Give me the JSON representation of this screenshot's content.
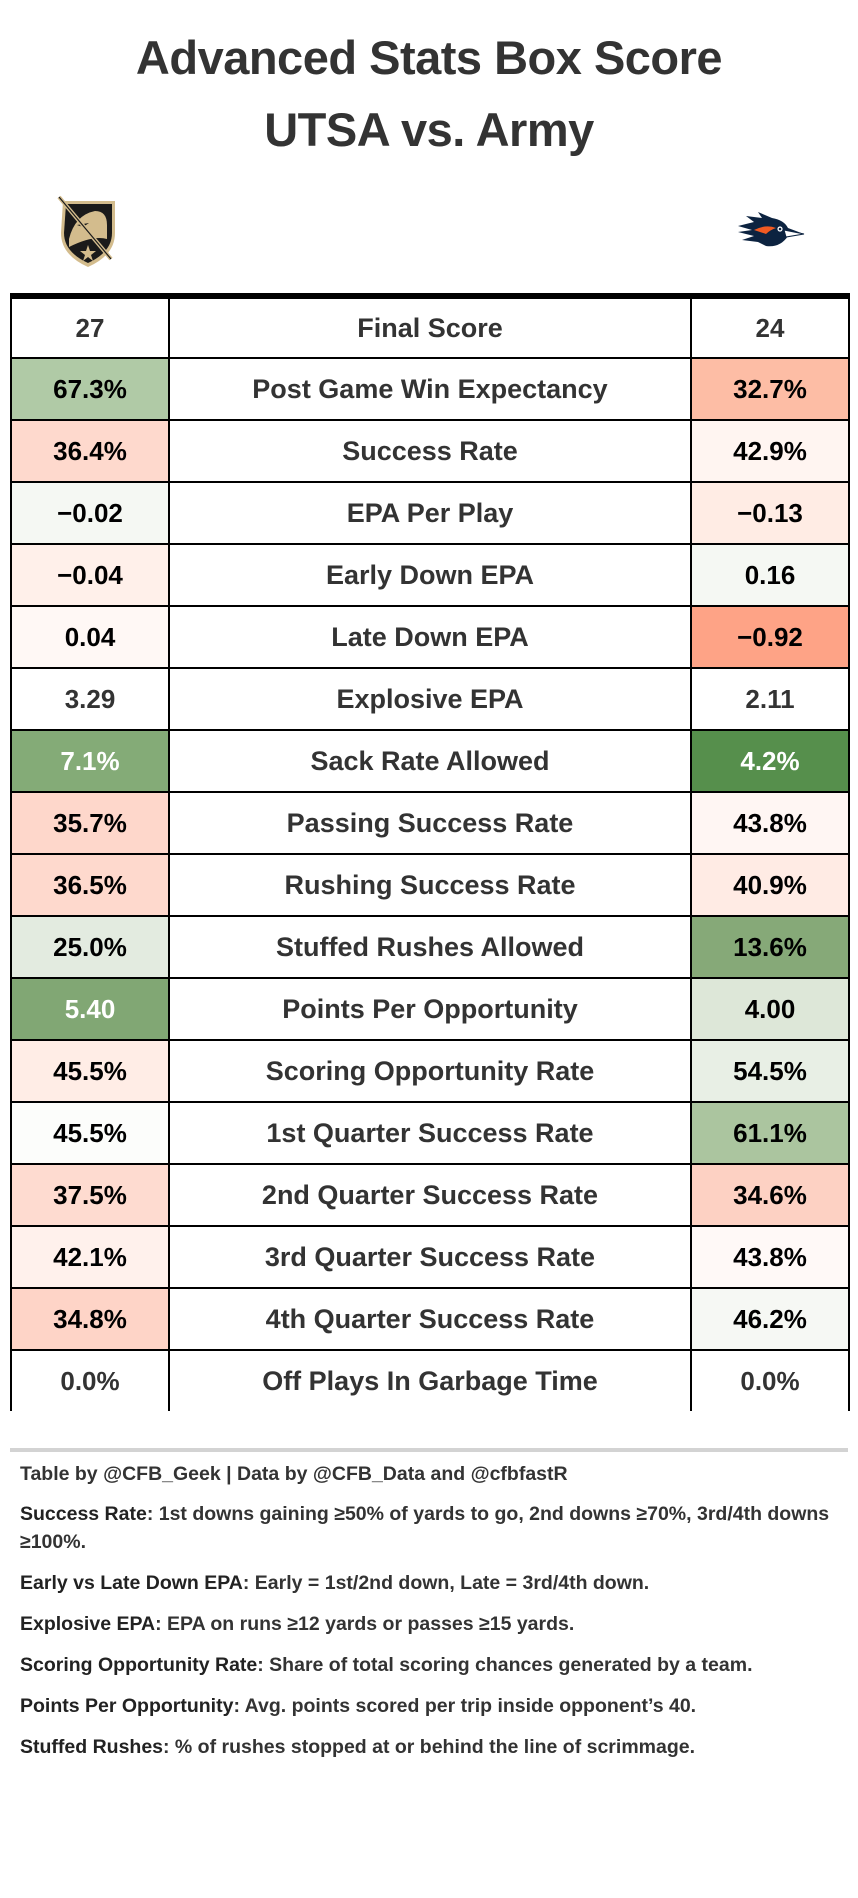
{
  "header": {
    "title_line1": "Advanced Stats Box Score",
    "title_line2": "UTSA vs. Army",
    "left_team_logo": "army-black-knights-logo",
    "right_team_logo": "utsa-roadrunners-logo"
  },
  "table": {
    "rows": [
      {
        "left": "27",
        "label": "Final Score",
        "right": "24",
        "left_bg": "#ffffff",
        "right_bg": "#ffffff",
        "left_text": "plain",
        "right_text": "plain"
      },
      {
        "left": "67.3%",
        "label": "Post Game Win Expectancy",
        "right": "32.7%",
        "left_bg": "#b0caa6",
        "right_bg": "#fdbda5",
        "left_text": "dark",
        "right_text": "dark"
      },
      {
        "left": "36.4%",
        "label": "Success Rate",
        "right": "42.9%",
        "left_bg": "#fed9cd",
        "right_bg": "#fff5f1",
        "left_text": "dark",
        "right_text": "dark"
      },
      {
        "left": "−0.02",
        "label": "EPA Per Play",
        "right": "−0.13",
        "left_bg": "#f5f8f3",
        "right_bg": "#ffece4",
        "left_text": "dark",
        "right_text": "dark"
      },
      {
        "left": "−0.04",
        "label": "Early Down EPA",
        "right": "0.16",
        "left_bg": "#fff0ea",
        "right_bg": "#f5f8f3",
        "left_text": "dark",
        "right_text": "dark"
      },
      {
        "left": "0.04",
        "label": "Late Down EPA",
        "right": "−0.92",
        "left_bg": "#fff8f5",
        "right_bg": "#fea386",
        "left_text": "dark",
        "right_text": "dark"
      },
      {
        "left": "3.29",
        "label": "Explosive EPA",
        "right": "2.11",
        "left_bg": "#ffffff",
        "right_bg": "#ffffff",
        "left_text": "plain",
        "right_text": "plain"
      },
      {
        "left": "7.1%",
        "label": "Sack Rate Allowed",
        "right": "4.2%",
        "left_bg": "#84ab77",
        "right_bg": "#568f4c",
        "left_text": "light",
        "right_text": "light"
      },
      {
        "left": "35.7%",
        "label": "Passing Success Rate",
        "right": "43.8%",
        "left_bg": "#fed7cb",
        "right_bg": "#fff6f3",
        "left_text": "dark",
        "right_text": "dark"
      },
      {
        "left": "36.5%",
        "label": "Rushing Success Rate",
        "right": "40.9%",
        "left_bg": "#fed9cd",
        "right_bg": "#ffebe4",
        "left_text": "dark",
        "right_text": "dark"
      },
      {
        "left": "25.0%",
        "label": "Stuffed Rushes Allowed",
        "right": "13.6%",
        "left_bg": "#e3ebe0",
        "right_bg": "#86a978",
        "left_text": "dark",
        "right_text": "dark"
      },
      {
        "left": "5.40",
        "label": "Points Per Opportunity",
        "right": "4.00",
        "left_bg": "#81a774",
        "right_bg": "#dde7d8",
        "left_text": "light",
        "right_text": "dark"
      },
      {
        "left": "45.5%",
        "label": "Scoring Opportunity Rate",
        "right": "54.5%",
        "left_bg": "#ffede6",
        "right_bg": "#e8efe5",
        "left_text": "dark",
        "right_text": "dark"
      },
      {
        "left": "45.5%",
        "label": "1st Quarter Success Rate",
        "right": "61.1%",
        "left_bg": "#fcfdfb",
        "right_bg": "#abc59f",
        "left_text": "dark",
        "right_text": "dark"
      },
      {
        "left": "37.5%",
        "label": "2nd Quarter Success Rate",
        "right": "34.6%",
        "left_bg": "#fedbd0",
        "right_bg": "#fdd1c3",
        "left_text": "dark",
        "right_text": "dark"
      },
      {
        "left": "42.1%",
        "label": "3rd Quarter Success Rate",
        "right": "43.8%",
        "left_bg": "#fff1ec",
        "right_bg": "#fff9f7",
        "left_text": "dark",
        "right_text": "dark"
      },
      {
        "left": "34.8%",
        "label": "4th Quarter Success Rate",
        "right": "46.2%",
        "left_bg": "#fed4c7",
        "right_bg": "#f6f8f4",
        "left_text": "dark",
        "right_text": "dark"
      },
      {
        "left": "0.0%",
        "label": "Off Plays In Garbage Time",
        "right": "0.0%",
        "left_bg": "#ffffff",
        "right_bg": "#ffffff",
        "left_text": "plain",
        "right_text": "plain"
      }
    ]
  },
  "footer": {
    "credit": "Table by @CFB_Geek | Data by @CFB_Data and @cfbfastR",
    "notes": [
      {
        "term": "Success Rate",
        "definition": ": 1st downs gaining ≥50% of yards to go, 2nd downs ≥70%, 3rd/4th downs ≥100%."
      },
      {
        "term": "Early vs Late Down EPA",
        "definition": ": Early = 1st/2nd down, Late = 3rd/4th down."
      },
      {
        "term": "Explosive EPA",
        "definition": ": EPA on runs ≥12 yards or passes ≥15 yards."
      },
      {
        "term": "Scoring Opportunity Rate",
        "definition": ": Share of total scoring chances generated by a team."
      },
      {
        "term": "Points Per Opportunity",
        "definition": ": Avg. points scored per trip inside opponent’s 40."
      },
      {
        "term": "Stuffed Rushes",
        "definition": ": % of rushes stopped at or behind the line of scrimmage."
      }
    ]
  }
}
